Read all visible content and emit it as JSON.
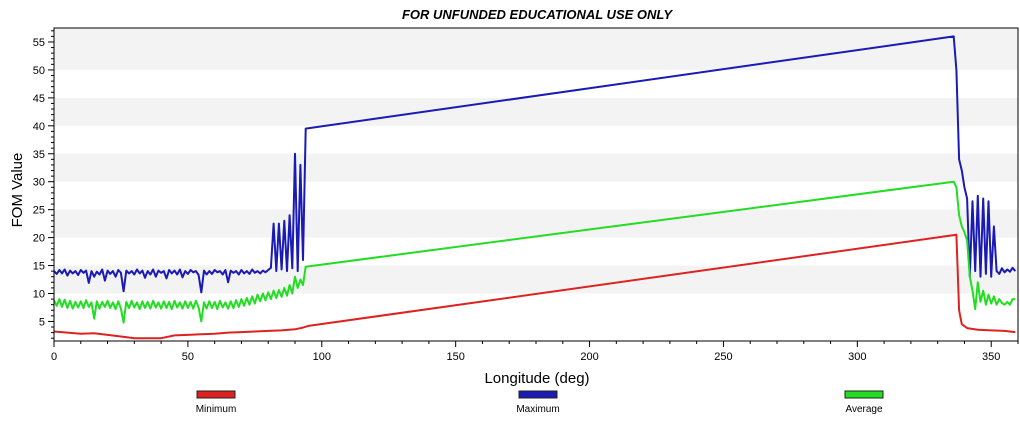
{
  "chart_data": {
    "type": "line",
    "title": "FOR UNFUNDED EDUCATIONAL USE ONLY",
    "xlabel": "Longitude (deg)",
    "ylabel": "FOM Value",
    "xlim": [
      0,
      360
    ],
    "ylim": [
      1.5,
      57.5
    ],
    "x_ticks": [
      0,
      50,
      100,
      150,
      200,
      250,
      300,
      350
    ],
    "y_ticks": [
      5,
      10,
      15,
      20,
      25,
      30,
      35,
      40,
      45,
      50,
      55
    ],
    "grid": "alternating horizontal bands",
    "legend_position": "bottom",
    "series": [
      {
        "name": "Minimum",
        "color": "#dd2222",
        "points": [
          [
            0,
            3.2
          ],
          [
            5,
            3.0
          ],
          [
            10,
            2.8
          ],
          [
            15,
            2.9
          ],
          [
            20,
            2.6
          ],
          [
            25,
            2.3
          ],
          [
            30,
            2.0
          ],
          [
            35,
            2.0
          ],
          [
            40,
            2.0
          ],
          [
            45,
            2.5
          ],
          [
            50,
            2.6
          ],
          [
            55,
            2.7
          ],
          [
            60,
            2.8
          ],
          [
            65,
            3.0
          ],
          [
            70,
            3.1
          ],
          [
            75,
            3.2
          ],
          [
            80,
            3.3
          ],
          [
            85,
            3.4
          ],
          [
            90,
            3.6
          ],
          [
            93,
            3.9
          ],
          [
            95,
            4.2
          ],
          [
            337,
            20.5
          ],
          [
            338,
            7.0
          ],
          [
            339,
            4.5
          ],
          [
            341,
            3.8
          ],
          [
            345,
            3.5
          ],
          [
            350,
            3.4
          ],
          [
            355,
            3.3
          ],
          [
            359,
            3.1
          ]
        ]
      },
      {
        "name": "Maximum",
        "color": "#1a1ab4",
        "points": [
          [
            0,
            14.0
          ],
          [
            1,
            13.5
          ],
          [
            2,
            14.2
          ],
          [
            3,
            13.6
          ],
          [
            4,
            14.3
          ],
          [
            5,
            13.2
          ],
          [
            6,
            14.1
          ],
          [
            7,
            13.6
          ],
          [
            8,
            14.0
          ],
          [
            9,
            13.3
          ],
          [
            10,
            14.2
          ],
          [
            11,
            13.7
          ],
          [
            12,
            14.1
          ],
          [
            13,
            11.9
          ],
          [
            14,
            14.0
          ],
          [
            15,
            13.0
          ],
          [
            16,
            13.9
          ],
          [
            17,
            13.4
          ],
          [
            18,
            14.3
          ],
          [
            19,
            12.3
          ],
          [
            20,
            14.1
          ],
          [
            21,
            13.5
          ],
          [
            22,
            14.0
          ],
          [
            23,
            13.0
          ],
          [
            24,
            14.2
          ],
          [
            25,
            13.7
          ],
          [
            26,
            10.4
          ],
          [
            27,
            14.1
          ],
          [
            28,
            13.6
          ],
          [
            29,
            14.0
          ],
          [
            30,
            13.4
          ],
          [
            31,
            14.3
          ],
          [
            32,
            13.6
          ],
          [
            33,
            14.1
          ],
          [
            34,
            12.8
          ],
          [
            35,
            14.0
          ],
          [
            36,
            13.4
          ],
          [
            37,
            14.3
          ],
          [
            38,
            13.0
          ],
          [
            39,
            14.1
          ],
          [
            40,
            13.7
          ],
          [
            41,
            14.0
          ],
          [
            42,
            12.7
          ],
          [
            43,
            14.2
          ],
          [
            44,
            13.6
          ],
          [
            45,
            14.1
          ],
          [
            46,
            13.4
          ],
          [
            47,
            14.3
          ],
          [
            48,
            12.9
          ],
          [
            49,
            14.0
          ],
          [
            50,
            13.5
          ],
          [
            51,
            14.2
          ],
          [
            52,
            13.8
          ],
          [
            53,
            14.0
          ],
          [
            54,
            13.3
          ],
          [
            55,
            10.2
          ],
          [
            56,
            14.1
          ],
          [
            57,
            13.4
          ],
          [
            58,
            14.0
          ],
          [
            59,
            13.5
          ],
          [
            60,
            14.2
          ],
          [
            61,
            13.8
          ],
          [
            62,
            14.0
          ],
          [
            63,
            13.4
          ],
          [
            64,
            14.2
          ],
          [
            65,
            12.0
          ],
          [
            66,
            14.1
          ],
          [
            67,
            13.7
          ],
          [
            68,
            14.0
          ],
          [
            69,
            13.4
          ],
          [
            70,
            14.2
          ],
          [
            71,
            13.6
          ],
          [
            72,
            14.0
          ],
          [
            73,
            13.5
          ],
          [
            74,
            14.3
          ],
          [
            75,
            13.7
          ],
          [
            76,
            14.0
          ],
          [
            77,
            13.6
          ],
          [
            78,
            14.1
          ],
          [
            79,
            13.8
          ],
          [
            80,
            14.2
          ],
          [
            81,
            14.6
          ],
          [
            82,
            22.5
          ],
          [
            83,
            14.0
          ],
          [
            84,
            22.5
          ],
          [
            85,
            14.3
          ],
          [
            86,
            23.0
          ],
          [
            87,
            14.0
          ],
          [
            88,
            24.0
          ],
          [
            89,
            14.5
          ],
          [
            90,
            35.0
          ],
          [
            91,
            14.0
          ],
          [
            92,
            33.0
          ],
          [
            93,
            16.0
          ],
          [
            94,
            39.5
          ],
          [
            336,
            56.0
          ],
          [
            337,
            50.0
          ],
          [
            338,
            34.0
          ],
          [
            339,
            32.0
          ],
          [
            340,
            29.0
          ],
          [
            341,
            27.0
          ],
          [
            342,
            13.0
          ],
          [
            343,
            26.5
          ],
          [
            344,
            14.0
          ],
          [
            345,
            27.5
          ],
          [
            346,
            13.0
          ],
          [
            347,
            27.0
          ],
          [
            348,
            13.5
          ],
          [
            349,
            26.5
          ],
          [
            350,
            13.0
          ],
          [
            351,
            22.0
          ],
          [
            352,
            14.0
          ],
          [
            353,
            13.5
          ],
          [
            354,
            14.5
          ],
          [
            355,
            13.8
          ],
          [
            356,
            14.3
          ],
          [
            357,
            13.9
          ],
          [
            358,
            14.6
          ],
          [
            359,
            14.0
          ]
        ]
      },
      {
        "name": "Average",
        "color": "#22dd22",
        "points": [
          [
            0,
            8.8
          ],
          [
            1,
            7.8
          ],
          [
            2,
            9.0
          ],
          [
            3,
            7.6
          ],
          [
            4,
            8.9
          ],
          [
            5,
            7.4
          ],
          [
            6,
            8.7
          ],
          [
            7,
            7.3
          ],
          [
            8,
            8.5
          ],
          [
            9,
            7.5
          ],
          [
            10,
            8.6
          ],
          [
            11,
            7.4
          ],
          [
            12,
            8.8
          ],
          [
            13,
            7.6
          ],
          [
            14,
            8.4
          ],
          [
            15,
            5.5
          ],
          [
            16,
            8.6
          ],
          [
            17,
            7.3
          ],
          [
            18,
            8.5
          ],
          [
            19,
            7.6
          ],
          [
            20,
            8.7
          ],
          [
            21,
            7.4
          ],
          [
            22,
            8.4
          ],
          [
            23,
            7.2
          ],
          [
            24,
            8.6
          ],
          [
            25,
            7.3
          ],
          [
            26,
            4.8
          ],
          [
            27,
            8.5
          ],
          [
            28,
            7.4
          ],
          [
            29,
            8.7
          ],
          [
            30,
            7.5
          ],
          [
            31,
            8.4
          ],
          [
            32,
            7.2
          ],
          [
            33,
            8.6
          ],
          [
            34,
            7.4
          ],
          [
            35,
            8.5
          ],
          [
            36,
            7.3
          ],
          [
            37,
            8.7
          ],
          [
            38,
            7.5
          ],
          [
            39,
            8.4
          ],
          [
            40,
            7.3
          ],
          [
            41,
            8.6
          ],
          [
            42,
            7.4
          ],
          [
            43,
            8.5
          ],
          [
            44,
            7.2
          ],
          [
            45,
            8.7
          ],
          [
            46,
            7.5
          ],
          [
            47,
            8.4
          ],
          [
            48,
            7.3
          ],
          [
            49,
            8.6
          ],
          [
            50,
            7.4
          ],
          [
            51,
            8.5
          ],
          [
            52,
            7.3
          ],
          [
            53,
            8.7
          ],
          [
            54,
            7.5
          ],
          [
            55,
            5.0
          ],
          [
            56,
            8.4
          ],
          [
            57,
            7.3
          ],
          [
            58,
            8.6
          ],
          [
            59,
            7.4
          ],
          [
            60,
            8.5
          ],
          [
            61,
            7.2
          ],
          [
            62,
            8.7
          ],
          [
            63,
            7.5
          ],
          [
            64,
            8.4
          ],
          [
            65,
            7.3
          ],
          [
            66,
            8.6
          ],
          [
            67,
            7.4
          ],
          [
            68,
            8.8
          ],
          [
            69,
            7.6
          ],
          [
            70,
            9.0
          ],
          [
            71,
            7.8
          ],
          [
            72,
            9.2
          ],
          [
            73,
            8.0
          ],
          [
            74,
            9.5
          ],
          [
            75,
            8.2
          ],
          [
            76,
            9.8
          ],
          [
            77,
            8.6
          ],
          [
            78,
            10.0
          ],
          [
            79,
            8.8
          ],
          [
            80,
            10.2
          ],
          [
            81,
            9.0
          ],
          [
            82,
            10.5
          ],
          [
            83,
            9.2
          ],
          [
            84,
            10.6
          ],
          [
            85,
            9.4
          ],
          [
            86,
            11.0
          ],
          [
            87,
            9.6
          ],
          [
            88,
            11.5
          ],
          [
            89,
            10.0
          ],
          [
            90,
            13.0
          ],
          [
            91,
            11.0
          ],
          [
            92,
            12.5
          ],
          [
            93,
            11.5
          ],
          [
            94,
            14.8
          ],
          [
            336,
            30.0
          ],
          [
            337,
            29.0
          ],
          [
            338,
            24.0
          ],
          [
            339,
            22.0
          ],
          [
            340,
            21.0
          ],
          [
            341,
            19.5
          ],
          [
            342,
            13.0
          ],
          [
            343,
            10.5
          ],
          [
            344,
            7.2
          ],
          [
            345,
            12.0
          ],
          [
            346,
            8.5
          ],
          [
            347,
            10.5
          ],
          [
            348,
            8.0
          ],
          [
            349,
            9.8
          ],
          [
            350,
            8.2
          ],
          [
            351,
            9.5
          ],
          [
            352,
            8.0
          ],
          [
            353,
            9.0
          ],
          [
            354,
            8.3
          ],
          [
            355,
            8.0
          ],
          [
            356,
            8.5
          ],
          [
            357,
            8.0
          ],
          [
            358,
            9.0
          ],
          [
            359,
            9.0
          ]
        ]
      }
    ]
  }
}
